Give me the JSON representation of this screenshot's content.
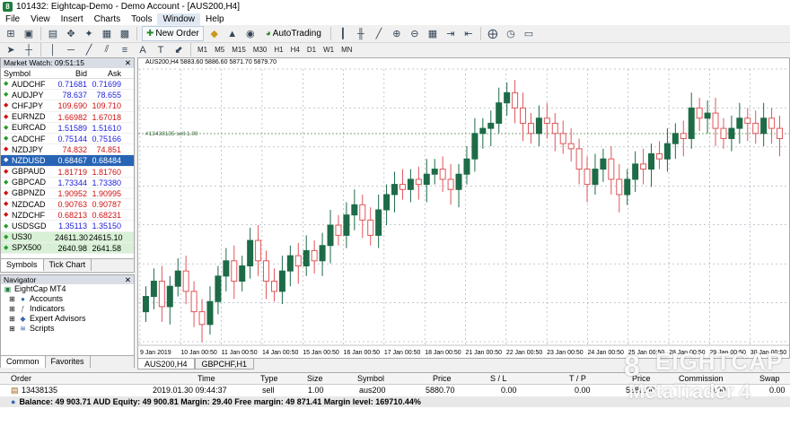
{
  "window": {
    "title": "101432: Eightcap-Demo - Demo Account - [AUS200,H4]"
  },
  "menu": [
    "File",
    "View",
    "Insert",
    "Charts",
    "Tools",
    "Window",
    "Help"
  ],
  "toolbar": {
    "new_order": "New Order",
    "autotrading": "AutoTrading"
  },
  "timeframes": [
    "M1",
    "M5",
    "M15",
    "M30",
    "H1",
    "H4",
    "D1",
    "W1",
    "MN"
  ],
  "market_watch": {
    "title": "Market Watch: 09:51:15",
    "col_symbol": "Symbol",
    "col_bid": "Bid",
    "col_ask": "Ask",
    "rows": [
      {
        "symbol": "AUDCHF",
        "bid": "0.71681",
        "ask": "0.71699",
        "dir": "up"
      },
      {
        "symbol": "AUDJPY",
        "bid": "78.637",
        "ask": "78.655",
        "dir": "up"
      },
      {
        "symbol": "CHFJPY",
        "bid": "109.690",
        "ask": "109.710",
        "dir": "down"
      },
      {
        "symbol": "EURNZD",
        "bid": "1.66982",
        "ask": "1.67018",
        "dir": "down"
      },
      {
        "symbol": "EURCAD",
        "bid": "1.51589",
        "ask": "1.51610",
        "dir": "up"
      },
      {
        "symbol": "CADCHF",
        "bid": "0.75144",
        "ask": "0.75166",
        "dir": "up"
      },
      {
        "symbol": "NZDJPY",
        "bid": "74.832",
        "ask": "74.851",
        "dir": "down"
      },
      {
        "symbol": "NZDUSD",
        "bid": "0.68467",
        "ask": "0.68484",
        "dir": "sel"
      },
      {
        "symbol": "GBPAUD",
        "bid": "1.81719",
        "ask": "1.81760",
        "dir": "down"
      },
      {
        "symbol": "GBPCAD",
        "bid": "1.73344",
        "ask": "1.73380",
        "dir": "up"
      },
      {
        "symbol": "GBPNZD",
        "bid": "1.90952",
        "ask": "1.90995",
        "dir": "down"
      },
      {
        "symbol": "NZDCAD",
        "bid": "0.90763",
        "ask": "0.90787",
        "dir": "down"
      },
      {
        "symbol": "NZDCHF",
        "bid": "0.68213",
        "ask": "0.68231",
        "dir": "down"
      },
      {
        "symbol": "USDSGD",
        "bid": "1.35113",
        "ask": "1.35150",
        "dir": "up"
      },
      {
        "symbol": "US30",
        "bid": "24611.30",
        "ask": "24615.10",
        "dir": "green"
      },
      {
        "symbol": "SPX500",
        "bid": "2640.98",
        "ask": "2641.58",
        "dir": "green"
      }
    ],
    "tabs": [
      "Symbols",
      "Tick Chart"
    ]
  },
  "navigator": {
    "title": "Navigator",
    "root": "EightCap MT4",
    "items": [
      "Accounts",
      "Indicators",
      "Expert Advisors",
      "Scripts"
    ],
    "tabs": [
      "Common",
      "Favorites"
    ]
  },
  "chart": {
    "header": "AUS200,H4  5883.60 5886.60 5871.70 5879.70",
    "order_label": "#13438135 sell 1.00",
    "tabs": [
      "AUS200,H4",
      "GBPCHF,H1"
    ],
    "time_labels": [
      "9 Jan 2019",
      "10 Jan 00:50",
      "11 Jan 00:50",
      "14 Jan 00:50",
      "15 Jan 00:50",
      "16 Jan 00:50",
      "17 Jan 00:50",
      "18 Jan 00:50",
      "21 Jan 00:50",
      "22 Jan 00:50",
      "23 Jan 00:50",
      "24 Jan 00:50",
      "25 Jan 00:50",
      "28 Jan 00:50",
      "29 Jan 00:50",
      "30 Jan 00:50"
    ]
  },
  "chart_data": {
    "type": "candlestick",
    "symbol": "AUS200",
    "timeframe": "H4",
    "order_line_price": "sell 1.00",
    "candles_trend": [
      [
        0.1,
        0.16
      ],
      [
        0.16,
        0.22
      ],
      [
        0.22,
        0.12
      ],
      [
        0.12,
        0.2
      ],
      [
        0.2,
        0.26
      ],
      [
        0.26,
        0.18
      ],
      [
        0.18,
        0.1
      ],
      [
        0.1,
        0.05
      ],
      [
        0.05,
        0.14
      ],
      [
        0.14,
        0.24
      ],
      [
        0.24,
        0.3
      ],
      [
        0.3,
        0.22
      ],
      [
        0.22,
        0.28
      ],
      [
        0.28,
        0.38
      ],
      [
        0.38,
        0.3
      ],
      [
        0.3,
        0.22
      ],
      [
        0.22,
        0.18
      ],
      [
        0.18,
        0.26
      ],
      [
        0.26,
        0.32
      ],
      [
        0.32,
        0.28
      ],
      [
        0.28,
        0.34
      ],
      [
        0.34,
        0.3
      ],
      [
        0.3,
        0.36
      ],
      [
        0.36,
        0.44
      ],
      [
        0.44,
        0.4
      ],
      [
        0.4,
        0.48
      ],
      [
        0.48,
        0.52
      ],
      [
        0.52,
        0.46
      ],
      [
        0.46,
        0.4
      ],
      [
        0.4,
        0.5
      ],
      [
        0.5,
        0.56
      ],
      [
        0.56,
        0.6
      ],
      [
        0.6,
        0.58
      ],
      [
        0.58,
        0.62
      ],
      [
        0.62,
        0.6
      ],
      [
        0.6,
        0.64
      ],
      [
        0.64,
        0.66
      ],
      [
        0.66,
        0.62
      ],
      [
        0.62,
        0.58
      ],
      [
        0.58,
        0.64
      ],
      [
        0.64,
        0.7
      ],
      [
        0.7,
        0.8
      ],
      [
        0.8,
        0.82
      ],
      [
        0.82,
        0.84
      ],
      [
        0.84,
        0.92
      ],
      [
        0.92,
        0.96
      ],
      [
        0.96,
        0.9
      ],
      [
        0.9,
        0.84
      ],
      [
        0.84,
        0.8
      ],
      [
        0.8,
        0.86
      ],
      [
        0.86,
        0.84
      ],
      [
        0.84,
        0.8
      ],
      [
        0.8,
        0.76
      ],
      [
        0.76,
        0.74
      ],
      [
        0.74,
        0.66
      ],
      [
        0.66,
        0.6
      ],
      [
        0.6,
        0.66
      ],
      [
        0.66,
        0.7
      ],
      [
        0.7,
        0.62
      ],
      [
        0.62,
        0.56
      ],
      [
        0.56,
        0.62
      ],
      [
        0.62,
        0.68
      ],
      [
        0.68,
        0.66
      ],
      [
        0.66,
        0.72
      ],
      [
        0.72,
        0.7
      ],
      [
        0.7,
        0.76
      ],
      [
        0.76,
        0.8
      ],
      [
        0.8,
        0.78
      ],
      [
        0.78,
        0.9
      ],
      [
        0.9,
        0.86
      ],
      [
        0.86,
        0.88
      ],
      [
        0.88,
        0.82
      ],
      [
        0.82,
        0.78
      ],
      [
        0.78,
        0.82
      ],
      [
        0.82,
        0.86
      ],
      [
        0.86,
        0.84
      ],
      [
        0.84,
        0.8
      ],
      [
        0.8,
        0.86
      ],
      [
        0.86,
        0.82
      ],
      [
        0.82,
        0.78
      ]
    ]
  },
  "terminal": {
    "headers": [
      "Order",
      "Time",
      "Type",
      "Size",
      "Symbol",
      "Price",
      "S / L",
      "T / P",
      "Price",
      "Commission",
      "Swap"
    ],
    "row": [
      "13438135",
      "2019.01.30 09:44:37",
      "sell",
      "1.00",
      "aus200",
      "5880.70",
      "0.00",
      "0.00",
      "5880.60",
      "0.00",
      "0.00"
    ],
    "balance": "Balance: 49 903.71 AUD  Equity: 49 900.81  Margin: 29.40  Free margin: 49 871.41  Margin level: 169710.44%"
  },
  "watermark": {
    "line1": "EIGHTCAP",
    "line2": "MetaTrader 4"
  },
  "colors": {
    "bull": "#1d6b47",
    "bear": "#e0565a",
    "grid": "#8a92a8",
    "order_line": "#5a8a4a",
    "selected": "#2764b6"
  }
}
